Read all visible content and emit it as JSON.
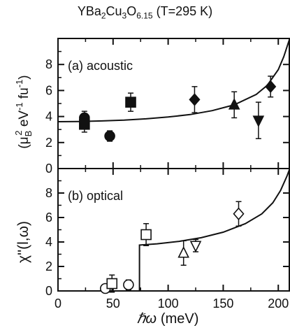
{
  "figure": {
    "compound_main": "YBa",
    "compound_sub1": "2",
    "compound_mid": "Cu",
    "compound_sub2": "3",
    "compound_end": "O",
    "compound_sub3": "6.15",
    "temperature_label": "(T=295 K)"
  },
  "chart_data": [
    {
      "type": "scatter",
      "panel_label": "(a)  acoustic",
      "xlim": [
        0,
        210
      ],
      "ylim": [
        0,
        10
      ],
      "x_ticks": [
        0,
        50,
        100,
        150,
        200
      ],
      "y_ticks": [
        0,
        2,
        4,
        6,
        8
      ],
      "y_tick_labels": [
        "0",
        "2",
        "4",
        "6",
        "8"
      ],
      "ylabel_parts": {
        "open": "(μ",
        "sub": "B",
        "sup": "2",
        "mid": " eV",
        "sup2": "-1",
        "end": " fu",
        "sup3": "-1",
        "close": ")"
      },
      "points": [
        {
          "marker": "circle-filled",
          "x": 24,
          "y": 3.9,
          "err": 0.5
        },
        {
          "marker": "square-filled",
          "x": 24,
          "y": 3.4,
          "err": 0.6
        },
        {
          "marker": "circle-filled",
          "x": 47,
          "y": 2.5,
          "err": 0.4
        },
        {
          "marker": "square-filled",
          "x": 66,
          "y": 5.1,
          "err": 0.7
        },
        {
          "marker": "diamond-filled",
          "x": 124,
          "y": 5.3,
          "err": 1.0
        },
        {
          "marker": "triangle-up-filled",
          "x": 160,
          "y": 4.9,
          "err": 1.0
        },
        {
          "marker": "triangle-down-filled",
          "x": 182,
          "y": 3.7,
          "err": 1.4
        },
        {
          "marker": "diamond-filled",
          "x": 193,
          "y": 6.3,
          "err": 0.8
        }
      ],
      "fit_curve": {
        "x": [
          0,
          20,
          40,
          60,
          80,
          100,
          120,
          140,
          160,
          180,
          190,
          200,
          205,
          210
        ],
        "y": [
          3.6,
          3.62,
          3.66,
          3.72,
          3.82,
          3.96,
          4.15,
          4.45,
          4.9,
          5.7,
          6.4,
          7.6,
          8.6,
          9.9
        ]
      }
    },
    {
      "type": "scatter",
      "panel_label": "(b)  optical",
      "xlim": [
        0,
        210
      ],
      "ylim": [
        0,
        10
      ],
      "x_ticks": [
        0,
        50,
        100,
        150,
        200
      ],
      "x_tick_labels": [
        "0",
        "50",
        "100",
        "150",
        "200"
      ],
      "y_ticks": [
        0,
        2,
        4,
        6,
        8
      ],
      "y_tick_labels": [
        "0",
        "2",
        "4",
        "6",
        "8"
      ],
      "ylabel": "χ''(l,ω)",
      "xlabel_symbol": "ℏω",
      "xlabel_unit": "(meV)",
      "points": [
        {
          "marker": "circle-open",
          "x": 43,
          "y": 0.2,
          "err": 0
        },
        {
          "marker": "square-open",
          "x": 49,
          "y": 0.6,
          "err": 0.7
        },
        {
          "marker": "circle-open",
          "x": 64,
          "y": 0.5,
          "err": 0.4
        },
        {
          "marker": "square-open",
          "x": 80,
          "y": 4.6,
          "err": 0.9
        },
        {
          "marker": "triangle-up-open",
          "x": 114,
          "y": 3.1,
          "err": 1.0
        },
        {
          "marker": "triangle-down-open",
          "x": 125,
          "y": 3.7,
          "err": 0.5
        },
        {
          "marker": "diamond-open",
          "x": 164,
          "y": 6.3,
          "err": 1.0
        }
      ],
      "fit_curve": {
        "x": [
          0,
          74,
          74,
          90,
          110,
          130,
          150,
          170,
          185,
          195,
          202,
          208,
          210
        ],
        "y": [
          0,
          0,
          3.75,
          3.85,
          4.05,
          4.35,
          4.8,
          5.5,
          6.3,
          7.2,
          8.2,
          9.4,
          9.9
        ]
      }
    }
  ]
}
